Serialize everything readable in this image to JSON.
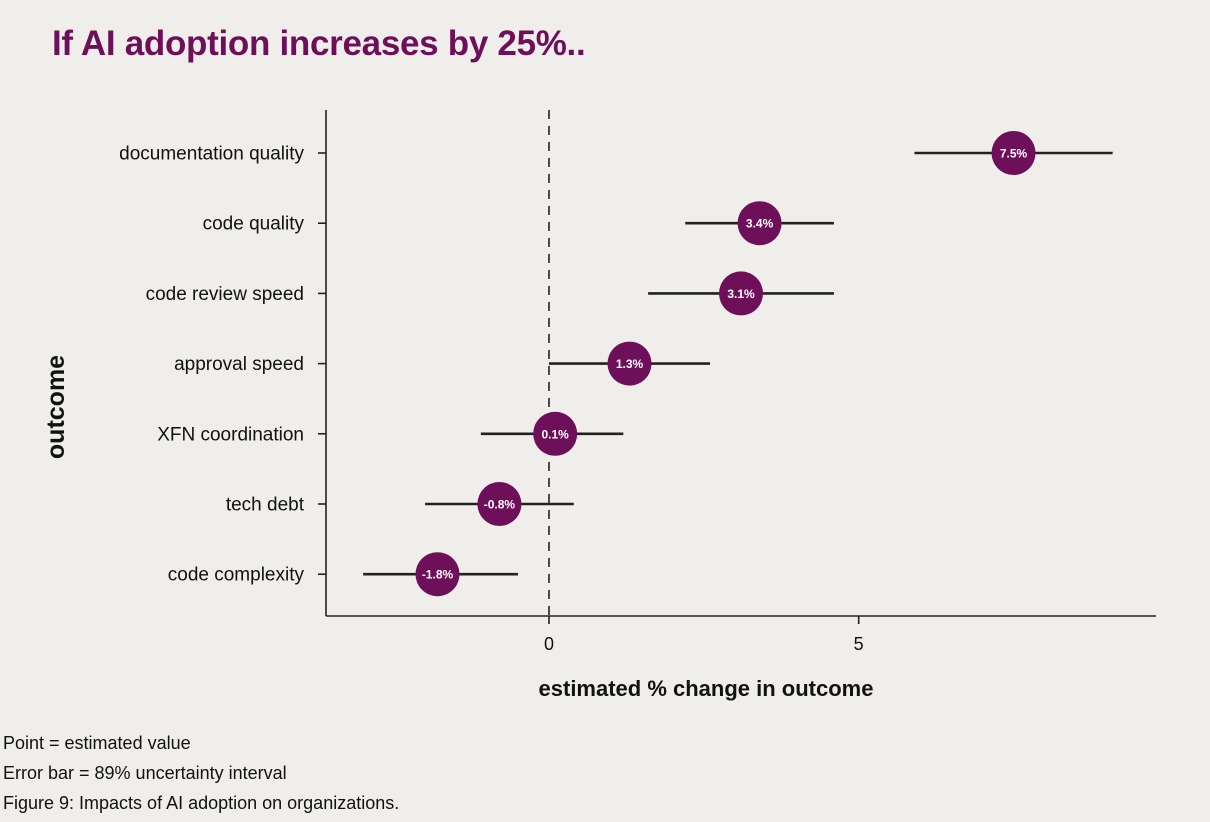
{
  "colors": {
    "background": "#f0eeeb",
    "accent": "#6e0f5a",
    "axis": "#222222",
    "text": "#111111",
    "point_label": "#ffffff"
  },
  "chart_data": {
    "type": "scatter",
    "title": "If AI adoption increases by 25%..",
    "xlabel": "estimated % change in outcome",
    "ylabel": "outcome",
    "xlim": [
      -3.6,
      9.8
    ],
    "xticks": [
      0,
      5
    ],
    "grid": false,
    "reference_line": {
      "x": 0,
      "style": "dashed"
    },
    "error_bar_description": "89% uncertainty interval",
    "categories": [
      "documentation quality",
      "code quality",
      "code review speed",
      "approval speed",
      "XFN coordination",
      "tech debt",
      "code complexity"
    ],
    "estimates": [
      7.5,
      3.4,
      3.1,
      1.3,
      0.1,
      -0.8,
      -1.8
    ],
    "labels": [
      "7.5%",
      "3.4%",
      "3.1%",
      "1.3%",
      "0.1%",
      "-0.8%",
      "-1.8%"
    ],
    "lower": [
      5.9,
      2.2,
      1.6,
      0.0,
      -1.1,
      -2.0,
      -3.0
    ],
    "upper": [
      9.1,
      4.6,
      4.6,
      2.6,
      1.2,
      0.4,
      -0.5
    ]
  },
  "footnotes": {
    "point": "Point = estimated value",
    "error_bar": "Error bar = 89% uncertainty interval",
    "caption": "Figure 9: Impacts of AI adoption on organizations."
  }
}
